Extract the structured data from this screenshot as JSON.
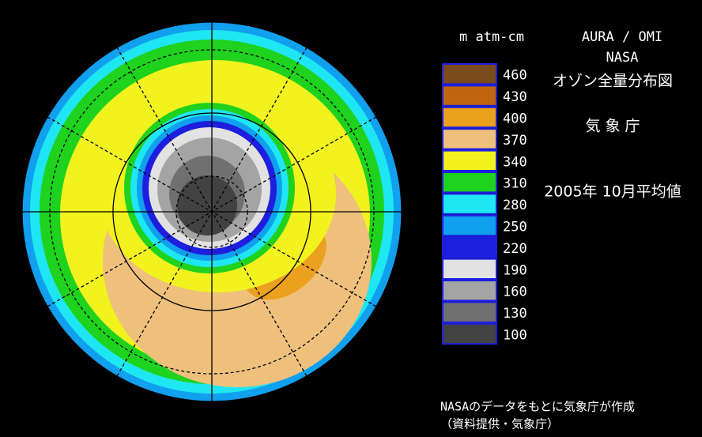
{
  "unit": "m atm-cm",
  "satellite": "AURA / OMI",
  "agency": "NASA",
  "title": "オゾン全量分布図",
  "source": "気 象 庁",
  "period": "2005年 10月平均値",
  "legend": [
    {
      "value": 460,
      "color": "#7b4b1e"
    },
    {
      "value": 430,
      "color": "#c0660e"
    },
    {
      "value": 400,
      "color": "#eba01e"
    },
    {
      "value": 370,
      "color": "#eec07c"
    },
    {
      "value": 340,
      "color": "#f2f21e"
    },
    {
      "value": 310,
      "color": "#1ed21e"
    },
    {
      "value": 280,
      "color": "#1ee6f2"
    },
    {
      "value": 250,
      "color": "#10a0ee"
    },
    {
      "value": 220,
      "color": "#1e1ede"
    },
    {
      "value": 190,
      "color": "#e2e2e2"
    },
    {
      "value": 160,
      "color": "#a4a4a4"
    },
    {
      "value": 130,
      "color": "#707070"
    },
    {
      "value": 100,
      "color": "#424242"
    }
  ],
  "credit": [
    "NASAのデータをもとに気象庁が作成",
    "（資料提供・気象庁）"
  ]
}
